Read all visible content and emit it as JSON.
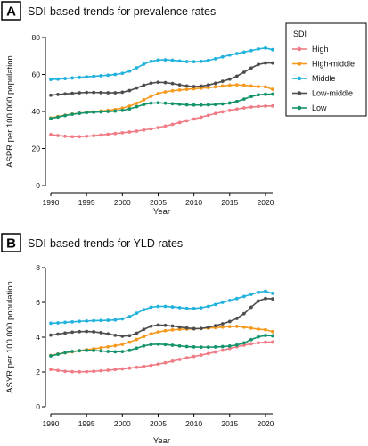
{
  "legend": {
    "title": "SDI",
    "entries": [
      {
        "name": "High",
        "color": "#f07b84"
      },
      {
        "name": "High-middle",
        "color": "#f59a1e"
      },
      {
        "name": "Middle",
        "color": "#20b2dd"
      },
      {
        "name": "Low-middle",
        "color": "#4d4d4d"
      },
      {
        "name": "Low",
        "color": "#13936b"
      }
    ]
  },
  "chart_data": [
    {
      "type": "line",
      "panel": "A",
      "title": "SDI-based trends for prevalence rates",
      "xlabel": "Year",
      "ylabel": "ASPR per 100 000 population",
      "xlim": [
        1990,
        2021
      ],
      "ylim": [
        0,
        80
      ],
      "xticks": [
        1990,
        1995,
        2000,
        2005,
        2010,
        2015,
        2020
      ],
      "yticks": [
        0,
        20,
        40,
        60,
        80
      ],
      "grid": false,
      "legend_position": "right",
      "x": [
        1990,
        1991,
        1992,
        1993,
        1994,
        1995,
        1996,
        1997,
        1998,
        1999,
        2000,
        2001,
        2002,
        2003,
        2004,
        2005,
        2006,
        2007,
        2008,
        2009,
        2010,
        2011,
        2012,
        2013,
        2014,
        2015,
        2016,
        2017,
        2018,
        2019,
        2020,
        2021
      ],
      "series": [
        {
          "name": "High",
          "color": "#f07b84",
          "values": [
            27.5,
            27.0,
            26.6,
            26.4,
            26.4,
            26.6,
            26.9,
            27.3,
            27.7,
            28.1,
            28.5,
            28.9,
            29.4,
            30.0,
            30.6,
            31.3,
            32.1,
            33.0,
            34.0,
            35.0,
            35.9,
            36.9,
            37.9,
            38.9,
            39.8,
            40.6,
            41.3,
            41.9,
            42.4,
            42.7,
            42.9,
            43.0
          ]
        },
        {
          "name": "High-middle",
          "color": "#f59a1e",
          "values": [
            36.5,
            37.3,
            38.0,
            38.6,
            39.1,
            39.5,
            39.8,
            40.2,
            40.6,
            41.1,
            41.8,
            42.9,
            44.4,
            46.3,
            48.2,
            49.7,
            50.6,
            51.2,
            51.6,
            52.0,
            52.3,
            52.6,
            52.9,
            53.3,
            53.8,
            54.2,
            54.4,
            54.2,
            53.8,
            53.5,
            53.3,
            52.0
          ]
        },
        {
          "name": "Middle",
          "color": "#20b2dd",
          "values": [
            57.3,
            57.5,
            57.8,
            58.1,
            58.4,
            58.7,
            59.0,
            59.3,
            59.6,
            60.0,
            60.6,
            61.8,
            63.6,
            65.6,
            67.1,
            67.8,
            67.9,
            67.7,
            67.3,
            67.0,
            66.9,
            67.1,
            67.6,
            68.5,
            69.5,
            70.5,
            71.3,
            72.1,
            72.9,
            73.8,
            74.3,
            73.4
          ]
        },
        {
          "name": "Low-middle",
          "color": "#4d4d4d",
          "values": [
            48.8,
            49.2,
            49.5,
            49.8,
            50.1,
            50.3,
            50.3,
            50.2,
            50.1,
            50.1,
            50.4,
            51.3,
            52.7,
            54.2,
            55.3,
            55.8,
            55.6,
            55.1,
            54.4,
            53.8,
            53.5,
            53.7,
            54.3,
            55.2,
            56.3,
            57.5,
            59.1,
            61.2,
            63.5,
            65.4,
            66.2,
            66.2
          ]
        },
        {
          "name": "Low",
          "color": "#13936b",
          "values": [
            36.2,
            37.0,
            37.8,
            38.5,
            39.0,
            39.4,
            39.6,
            39.8,
            40.0,
            40.2,
            40.6,
            41.4,
            42.6,
            43.8,
            44.5,
            44.7,
            44.5,
            44.2,
            43.9,
            43.6,
            43.5,
            43.5,
            43.6,
            43.8,
            44.1,
            44.6,
            45.4,
            46.7,
            48.1,
            49.0,
            49.3,
            49.4
          ]
        }
      ]
    },
    {
      "type": "line",
      "panel": "B",
      "title": "SDI-based trends for YLD rates",
      "xlabel": "Year",
      "ylabel": "ASYR per 100 000 population",
      "xlim": [
        1990,
        2021
      ],
      "ylim": [
        0,
        8
      ],
      "xticks": [
        1990,
        1995,
        2000,
        2005,
        2010,
        2015,
        2020
      ],
      "yticks": [
        0,
        2,
        4,
        6,
        8
      ],
      "grid": false,
      "x": [
        1990,
        1991,
        1992,
        1993,
        1994,
        1995,
        1996,
        1997,
        1998,
        1999,
        2000,
        2001,
        2002,
        2003,
        2004,
        2005,
        2006,
        2007,
        2008,
        2009,
        2010,
        2011,
        2012,
        2013,
        2014,
        2015,
        2016,
        2017,
        2018,
        2019,
        2020,
        2021
      ],
      "series": [
        {
          "name": "High",
          "color": "#f07b84",
          "values": [
            2.15,
            2.09,
            2.04,
            2.02,
            2.01,
            2.02,
            2.04,
            2.07,
            2.1,
            2.14,
            2.18,
            2.22,
            2.27,
            2.32,
            2.38,
            2.45,
            2.53,
            2.62,
            2.72,
            2.81,
            2.89,
            2.97,
            3.06,
            3.15,
            3.25,
            3.35,
            3.45,
            3.54,
            3.62,
            3.68,
            3.71,
            3.72
          ]
        },
        {
          "name": "High-middle",
          "color": "#f59a1e",
          "values": [
            2.95,
            3.03,
            3.1,
            3.16,
            3.22,
            3.28,
            3.33,
            3.39,
            3.45,
            3.51,
            3.59,
            3.71,
            3.87,
            4.04,
            4.19,
            4.3,
            4.37,
            4.42,
            4.45,
            4.47,
            4.48,
            4.5,
            4.52,
            4.55,
            4.58,
            4.61,
            4.62,
            4.58,
            4.52,
            4.46,
            4.43,
            4.32
          ]
        },
        {
          "name": "Middle",
          "color": "#20b2dd",
          "values": [
            4.8,
            4.82,
            4.85,
            4.88,
            4.91,
            4.93,
            4.95,
            4.96,
            4.97,
            4.99,
            5.05,
            5.18,
            5.38,
            5.58,
            5.72,
            5.77,
            5.77,
            5.74,
            5.7,
            5.66,
            5.65,
            5.69,
            5.77,
            5.88,
            6.0,
            6.11,
            6.22,
            6.34,
            6.46,
            6.58,
            6.64,
            6.52
          ]
        },
        {
          "name": "Low-middle",
          "color": "#4d4d4d",
          "values": [
            4.12,
            4.18,
            4.24,
            4.29,
            4.32,
            4.33,
            4.31,
            4.26,
            4.19,
            4.11,
            4.06,
            4.09,
            4.23,
            4.45,
            4.63,
            4.7,
            4.68,
            4.64,
            4.58,
            4.53,
            4.49,
            4.5,
            4.57,
            4.66,
            4.77,
            4.9,
            5.08,
            5.35,
            5.72,
            6.08,
            6.22,
            6.2
          ]
        },
        {
          "name": "Low",
          "color": "#13936b",
          "values": [
            2.92,
            3.02,
            3.11,
            3.18,
            3.22,
            3.24,
            3.23,
            3.21,
            3.18,
            3.16,
            3.17,
            3.24,
            3.37,
            3.5,
            3.58,
            3.6,
            3.58,
            3.54,
            3.5,
            3.46,
            3.44,
            3.43,
            3.43,
            3.44,
            3.46,
            3.49,
            3.55,
            3.67,
            3.86,
            4.02,
            4.1,
            4.08
          ]
        }
      ]
    }
  ]
}
